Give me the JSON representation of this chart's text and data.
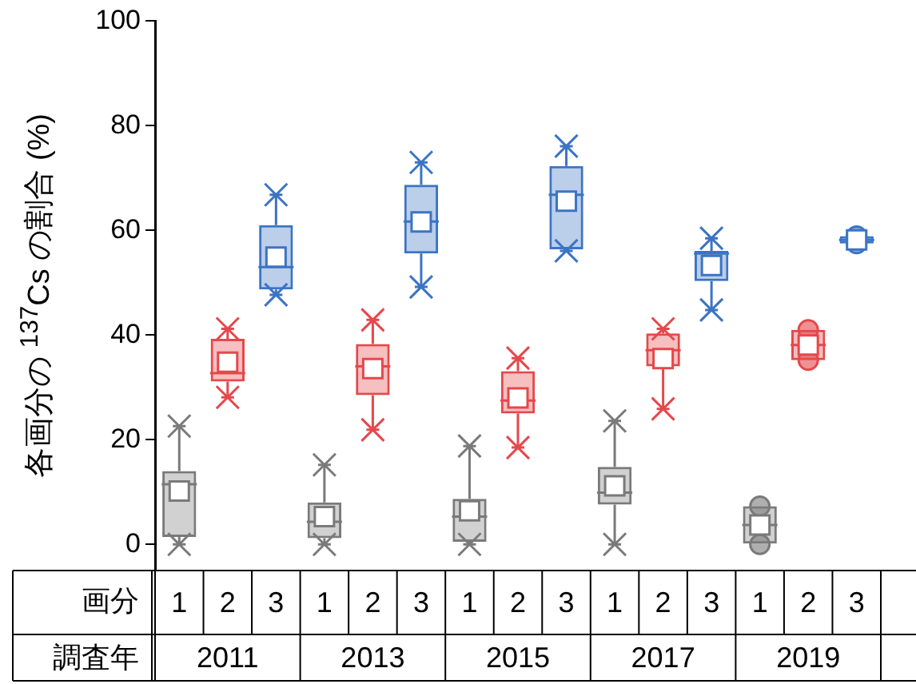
{
  "chart_data": {
    "type": "box",
    "ylabel": "各画分の $^{137}$Cs の割合 (%)",
    "xlabel": "画分",
    "categories": [
      "1",
      "2",
      "3",
      "1",
      "2",
      "3",
      "1",
      "2",
      "3",
      "1",
      "2",
      "3",
      "1",
      "2",
      "3"
    ],
    "colors": [
      "#7a7a7a",
      "#e5484b",
      "#3b74c4",
      "#7a7a7a",
      "#e5484b",
      "#3b74c4",
      "#7a7a7a",
      "#e5484b",
      "#3b74c4",
      "#7a7a7a",
      "#e5484b",
      "#3b74c4",
      "#7a7a7a",
      "#e5484b",
      "#3b74c4"
    ],
    "boxes": [
      {
        "low": 0,
        "q1": 1.4,
        "median": 11.5,
        "q3": 14,
        "high": 22.6,
        "mean": 10.2
      },
      {
        "low": 28.1,
        "q1": 31.1,
        "median": 32.7,
        "q3": 39.3,
        "high": 41.2,
        "mean": 34.8
      },
      {
        "low": 47.7,
        "q1": 48.7,
        "median": 53,
        "q3": 61,
        "high": 66.8,
        "mean": 54.9
      },
      {
        "low": 0,
        "q1": 1.2,
        "median": 4.3,
        "q3": 8,
        "high": 15.2,
        "mean": 5.3
      },
      {
        "low": 21.9,
        "q1": 28.5,
        "median": 34,
        "q3": 38.3,
        "high": 42.9,
        "mean": 33.6
      },
      {
        "low": 49.2,
        "q1": 55.6,
        "median": 61.7,
        "q3": 68.7,
        "high": 73,
        "mean": 61.6
      },
      {
        "low": 0,
        "q1": 0.5,
        "median": 5.3,
        "q3": 8.7,
        "high": 18.8,
        "mean": 6.4
      },
      {
        "low": 18.5,
        "q1": 25,
        "median": 27.5,
        "q3": 33.1,
        "high": 35.6,
        "mean": 28
      },
      {
        "low": 56.1,
        "q1": 56.4,
        "median": 66.8,
        "q3": 72.3,
        "high": 76.1,
        "mean": 65.6
      },
      {
        "low": 0,
        "q1": 7.6,
        "median": 9.9,
        "q3": 14.8,
        "high": 23.6,
        "mean": 11.2
      },
      {
        "low": 25.9,
        "q1": 34,
        "median": 37.1,
        "q3": 40.3,
        "high": 41.2,
        "mean": 35.5
      },
      {
        "low": 44.8,
        "q1": 50.3,
        "median": 55.6,
        "q3": 56.1,
        "high": 58.5,
        "mean": 53.3
      },
      {
        "low": 0,
        "q1": 0,
        "median": 3.7,
        "q3": 7.3,
        "high": 7.3,
        "mean": 3.7,
        "outliers": [
          0,
          7.3
        ]
      },
      {
        "low": 35.2,
        "q1": 35.2,
        "median": 38.1,
        "q3": 41,
        "high": 41,
        "mean": 38.1,
        "outliers": [
          35.2,
          41
        ]
      },
      {
        "low": 57.5,
        "q1": 57.5,
        "median": 58.2,
        "q3": 58.9,
        "high": 58.9,
        "mean": 58.2,
        "outliers": [
          57.5,
          58.9
        ]
      }
    ],
    "ylim": [
      -5,
      100
    ],
    "yticks": [
      0,
      20,
      40,
      60,
      80,
      100
    ],
    "annotations": [
      "調査年",
      "2011",
      "2013",
      "2015",
      "2017",
      "2019"
    ]
  }
}
